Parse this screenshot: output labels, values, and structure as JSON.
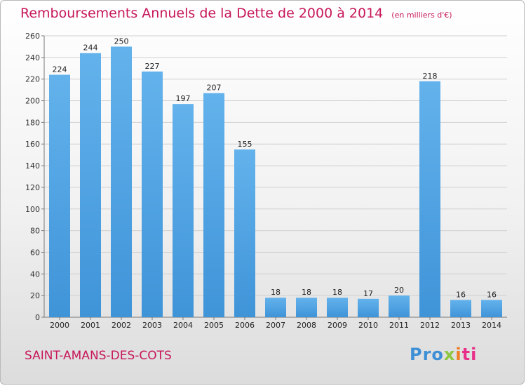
{
  "title": "Remboursements Annuels de la Dette de 2000 à 2014",
  "unit": "(en milliers d'€)",
  "town": "SAINT-AMANS-DES-COTS",
  "logo": {
    "p1": "Pro",
    "p2": "x",
    "p3": "i",
    "p4": "ti"
  },
  "colors": {
    "bar": "#3f94d8",
    "bar_light": "#63b2ec",
    "title": "#c7175a",
    "axis": "#555555"
  },
  "chart_data": {
    "type": "bar",
    "title": "Remboursements Annuels de la Dette de 2000 à 2014",
    "categories": [
      "2000",
      "2001",
      "2002",
      "2003",
      "2004",
      "2005",
      "2006",
      "2007",
      "2008",
      "2009",
      "2010",
      "2011",
      "2012",
      "2013",
      "2014"
    ],
    "values": [
      224,
      244,
      250,
      227,
      197,
      207,
      155,
      18,
      18,
      18,
      17,
      20,
      218,
      16,
      16
    ],
    "ylim": [
      0,
      260
    ],
    "yticks": [
      0,
      20,
      40,
      60,
      80,
      100,
      120,
      140,
      160,
      180,
      200,
      220,
      240,
      260
    ],
    "grid": true,
    "xlabel": "",
    "ylabel": ""
  }
}
